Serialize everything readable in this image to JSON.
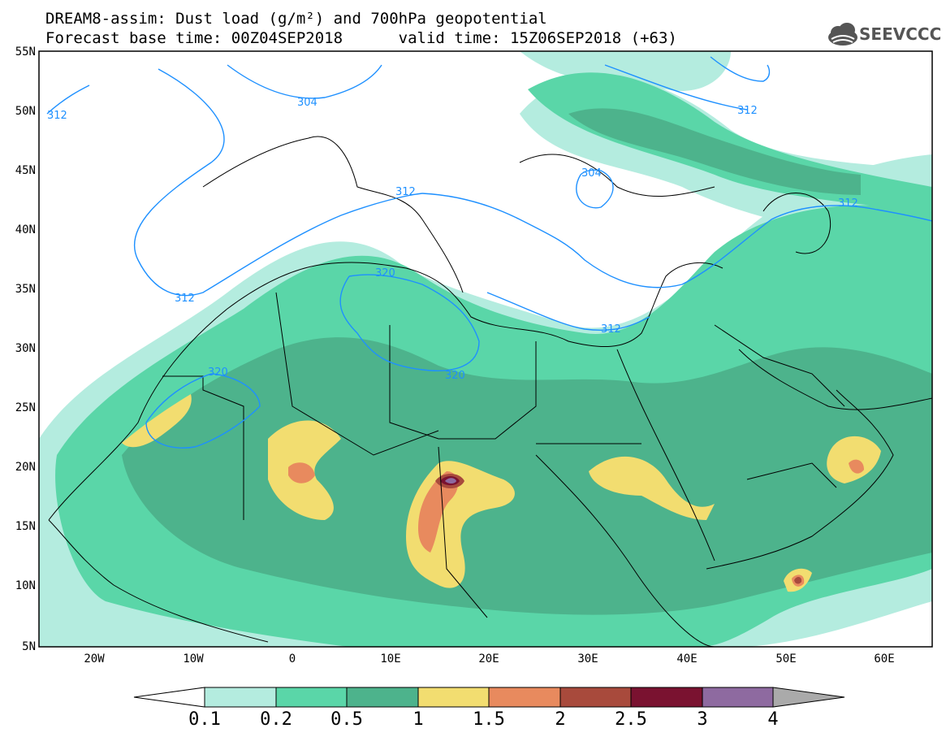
{
  "title": {
    "line1": "DREAM8-assim: Dust load (g/m²) and 700hPa geopotential",
    "line2": "Forecast base time: 00Z04SEP2018      valid time: 15Z06SEP2018 (+63)"
  },
  "logo": {
    "text": "SEEVCCC",
    "icon": "cloud-icon",
    "color": "#555555"
  },
  "axes": {
    "lat_labels": [
      "55N",
      "50N",
      "45N",
      "40N",
      "35N",
      "30N",
      "25N",
      "20N",
      "15N",
      "10N",
      "5N"
    ],
    "lon_labels": [
      "20W",
      "10W",
      "0",
      "10E",
      "20E",
      "30E",
      "40E",
      "50E",
      "60E"
    ]
  },
  "contour_labels": [
    "312",
    "304",
    "312",
    "304",
    "312",
    "312",
    "320",
    "312",
    "320",
    "312",
    "320"
  ],
  "colorbar": {
    "labels": [
      "0.1",
      "0.2",
      "0.5",
      "1",
      "1.5",
      "2",
      "2.5",
      "3",
      "4"
    ],
    "colors": [
      "#b4ecdf",
      "#5ad6a8",
      "#4db38c",
      "#f2dd70",
      "#e88a5e",
      "#a84a3c",
      "#7a1230",
      "#8e6aa0",
      "#aaaaaa"
    ]
  },
  "colors": {
    "contour_line": "#1e90ff",
    "border_line": "#000000"
  }
}
